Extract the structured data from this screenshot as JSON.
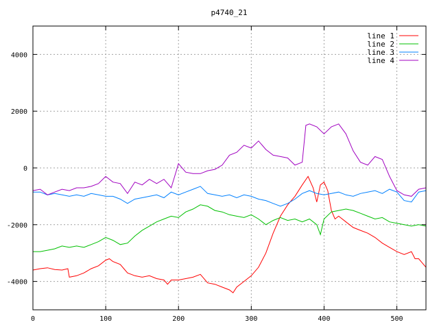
{
  "chart_data": {
    "type": "line",
    "title": "p4740_21",
    "xlabel": "",
    "ylabel": "",
    "xlim": [
      0,
      540
    ],
    "ylim": [
      -5000,
      5000
    ],
    "x_ticks": [
      0,
      100,
      200,
      300,
      400,
      500
    ],
    "y_ticks": [
      -4000,
      -2000,
      0,
      2000,
      4000
    ],
    "grid": true,
    "legend_position": "top-right",
    "series": [
      {
        "name": "line 1",
        "color": "#ff0000",
        "points": [
          [
            0,
            -3600
          ],
          [
            10,
            -3550
          ],
          [
            20,
            -3520
          ],
          [
            30,
            -3580
          ],
          [
            40,
            -3600
          ],
          [
            48,
            -3550
          ],
          [
            50,
            -3850
          ],
          [
            60,
            -3800
          ],
          [
            70,
            -3700
          ],
          [
            80,
            -3550
          ],
          [
            90,
            -3450
          ],
          [
            100,
            -3250
          ],
          [
            105,
            -3200
          ],
          [
            110,
            -3300
          ],
          [
            120,
            -3400
          ],
          [
            125,
            -3550
          ],
          [
            130,
            -3700
          ],
          [
            140,
            -3800
          ],
          [
            150,
            -3850
          ],
          [
            160,
            -3800
          ],
          [
            170,
            -3900
          ],
          [
            180,
            -3950
          ],
          [
            185,
            -4100
          ],
          [
            190,
            -3950
          ],
          [
            200,
            -3950
          ],
          [
            210,
            -3900
          ],
          [
            220,
            -3850
          ],
          [
            230,
            -3750
          ],
          [
            240,
            -4050
          ],
          [
            250,
            -4100
          ],
          [
            260,
            -4200
          ],
          [
            270,
            -4300
          ],
          [
            275,
            -4400
          ],
          [
            280,
            -4200
          ],
          [
            290,
            -4000
          ],
          [
            300,
            -3800
          ],
          [
            310,
            -3500
          ],
          [
            320,
            -3000
          ],
          [
            330,
            -2300
          ],
          [
            340,
            -1700
          ],
          [
            350,
            -1300
          ],
          [
            360,
            -1000
          ],
          [
            370,
            -600
          ],
          [
            378,
            -300
          ],
          [
            385,
            -700
          ],
          [
            390,
            -1200
          ],
          [
            395,
            -600
          ],
          [
            400,
            -500
          ],
          [
            405,
            -800
          ],
          [
            410,
            -1500
          ],
          [
            415,
            -1800
          ],
          [
            420,
            -1700
          ],
          [
            430,
            -1900
          ],
          [
            440,
            -2100
          ],
          [
            450,
            -2200
          ],
          [
            460,
            -2300
          ],
          [
            470,
            -2450
          ],
          [
            480,
            -2650
          ],
          [
            490,
            -2800
          ],
          [
            500,
            -2950
          ],
          [
            510,
            -3050
          ],
          [
            520,
            -2950
          ],
          [
            525,
            -3200
          ],
          [
            530,
            -3200
          ],
          [
            540,
            -3500
          ]
        ]
      },
      {
        "name": "line 2",
        "color": "#00c000",
        "points": [
          [
            0,
            -2950
          ],
          [
            10,
            -2950
          ],
          [
            20,
            -2900
          ],
          [
            30,
            -2850
          ],
          [
            40,
            -2750
          ],
          [
            50,
            -2800
          ],
          [
            60,
            -2750
          ],
          [
            70,
            -2800
          ],
          [
            80,
            -2700
          ],
          [
            90,
            -2600
          ],
          [
            100,
            -2450
          ],
          [
            110,
            -2550
          ],
          [
            120,
            -2700
          ],
          [
            130,
            -2650
          ],
          [
            140,
            -2400
          ],
          [
            150,
            -2200
          ],
          [
            160,
            -2050
          ],
          [
            170,
            -1900
          ],
          [
            180,
            -1800
          ],
          [
            190,
            -1700
          ],
          [
            200,
            -1750
          ],
          [
            210,
            -1550
          ],
          [
            220,
            -1450
          ],
          [
            230,
            -1300
          ],
          [
            240,
            -1350
          ],
          [
            250,
            -1500
          ],
          [
            260,
            -1550
          ],
          [
            270,
            -1650
          ],
          [
            280,
            -1700
          ],
          [
            290,
            -1750
          ],
          [
            300,
            -1650
          ],
          [
            310,
            -1800
          ],
          [
            320,
            -2000
          ],
          [
            330,
            -1850
          ],
          [
            340,
            -1750
          ],
          [
            350,
            -1850
          ],
          [
            360,
            -1800
          ],
          [
            370,
            -1900
          ],
          [
            380,
            -1800
          ],
          [
            390,
            -2000
          ],
          [
            395,
            -2350
          ],
          [
            400,
            -1800
          ],
          [
            410,
            -1550
          ],
          [
            420,
            -1500
          ],
          [
            430,
            -1450
          ],
          [
            440,
            -1500
          ],
          [
            450,
            -1600
          ],
          [
            460,
            -1700
          ],
          [
            470,
            -1800
          ],
          [
            480,
            -1750
          ],
          [
            490,
            -1900
          ],
          [
            500,
            -1950
          ],
          [
            510,
            -2000
          ],
          [
            520,
            -2050
          ],
          [
            530,
            -2000
          ],
          [
            540,
            -2050
          ]
        ]
      },
      {
        "name": "line 3",
        "color": "#0080ff",
        "points": [
          [
            0,
            -850
          ],
          [
            10,
            -850
          ],
          [
            20,
            -950
          ],
          [
            30,
            -900
          ],
          [
            40,
            -950
          ],
          [
            50,
            -1000
          ],
          [
            60,
            -950
          ],
          [
            70,
            -1000
          ],
          [
            80,
            -900
          ],
          [
            90,
            -950
          ],
          [
            100,
            -1000
          ],
          [
            110,
            -1000
          ],
          [
            120,
            -1100
          ],
          [
            130,
            -1250
          ],
          [
            140,
            -1100
          ],
          [
            150,
            -1050
          ],
          [
            160,
            -1000
          ],
          [
            170,
            -950
          ],
          [
            180,
            -1050
          ],
          [
            190,
            -850
          ],
          [
            200,
            -950
          ],
          [
            210,
            -850
          ],
          [
            220,
            -750
          ],
          [
            230,
            -650
          ],
          [
            240,
            -900
          ],
          [
            250,
            -950
          ],
          [
            260,
            -1000
          ],
          [
            270,
            -950
          ],
          [
            280,
            -1050
          ],
          [
            290,
            -950
          ],
          [
            300,
            -1000
          ],
          [
            310,
            -1100
          ],
          [
            320,
            -1150
          ],
          [
            330,
            -1250
          ],
          [
            340,
            -1350
          ],
          [
            350,
            -1250
          ],
          [
            360,
            -1100
          ],
          [
            370,
            -900
          ],
          [
            380,
            -800
          ],
          [
            390,
            -900
          ],
          [
            400,
            -950
          ],
          [
            410,
            -900
          ],
          [
            420,
            -850
          ],
          [
            430,
            -950
          ],
          [
            440,
            -1000
          ],
          [
            450,
            -900
          ],
          [
            460,
            -850
          ],
          [
            470,
            -800
          ],
          [
            480,
            -900
          ],
          [
            490,
            -750
          ],
          [
            500,
            -850
          ],
          [
            510,
            -1150
          ],
          [
            520,
            -1200
          ],
          [
            530,
            -850
          ],
          [
            540,
            -800
          ]
        ]
      },
      {
        "name": "line 4",
        "color": "#a000c0",
        "points": [
          [
            0,
            -800
          ],
          [
            10,
            -750
          ],
          [
            20,
            -950
          ],
          [
            30,
            -850
          ],
          [
            40,
            -750
          ],
          [
            50,
            -800
          ],
          [
            60,
            -700
          ],
          [
            70,
            -700
          ],
          [
            80,
            -650
          ],
          [
            90,
            -550
          ],
          [
            100,
            -300
          ],
          [
            110,
            -500
          ],
          [
            120,
            -550
          ],
          [
            130,
            -900
          ],
          [
            140,
            -500
          ],
          [
            150,
            -600
          ],
          [
            160,
            -400
          ],
          [
            170,
            -550
          ],
          [
            180,
            -400
          ],
          [
            190,
            -700
          ],
          [
            200,
            150
          ],
          [
            210,
            -150
          ],
          [
            220,
            -200
          ],
          [
            230,
            -200
          ],
          [
            240,
            -100
          ],
          [
            250,
            -50
          ],
          [
            260,
            100
          ],
          [
            270,
            450
          ],
          [
            280,
            550
          ],
          [
            290,
            800
          ],
          [
            300,
            700
          ],
          [
            310,
            950
          ],
          [
            320,
            650
          ],
          [
            330,
            450
          ],
          [
            340,
            400
          ],
          [
            350,
            350
          ],
          [
            360,
            100
          ],
          [
            370,
            200
          ],
          [
            375,
            1500
          ],
          [
            380,
            1550
          ],
          [
            390,
            1450
          ],
          [
            400,
            1200
          ],
          [
            410,
            1450
          ],
          [
            420,
            1550
          ],
          [
            430,
            1200
          ],
          [
            440,
            600
          ],
          [
            450,
            200
          ],
          [
            460,
            100
          ],
          [
            470,
            400
          ],
          [
            480,
            300
          ],
          [
            490,
            -300
          ],
          [
            500,
            -800
          ],
          [
            510,
            -950
          ],
          [
            520,
            -1000
          ],
          [
            530,
            -750
          ],
          [
            540,
            -700
          ]
        ]
      }
    ]
  }
}
